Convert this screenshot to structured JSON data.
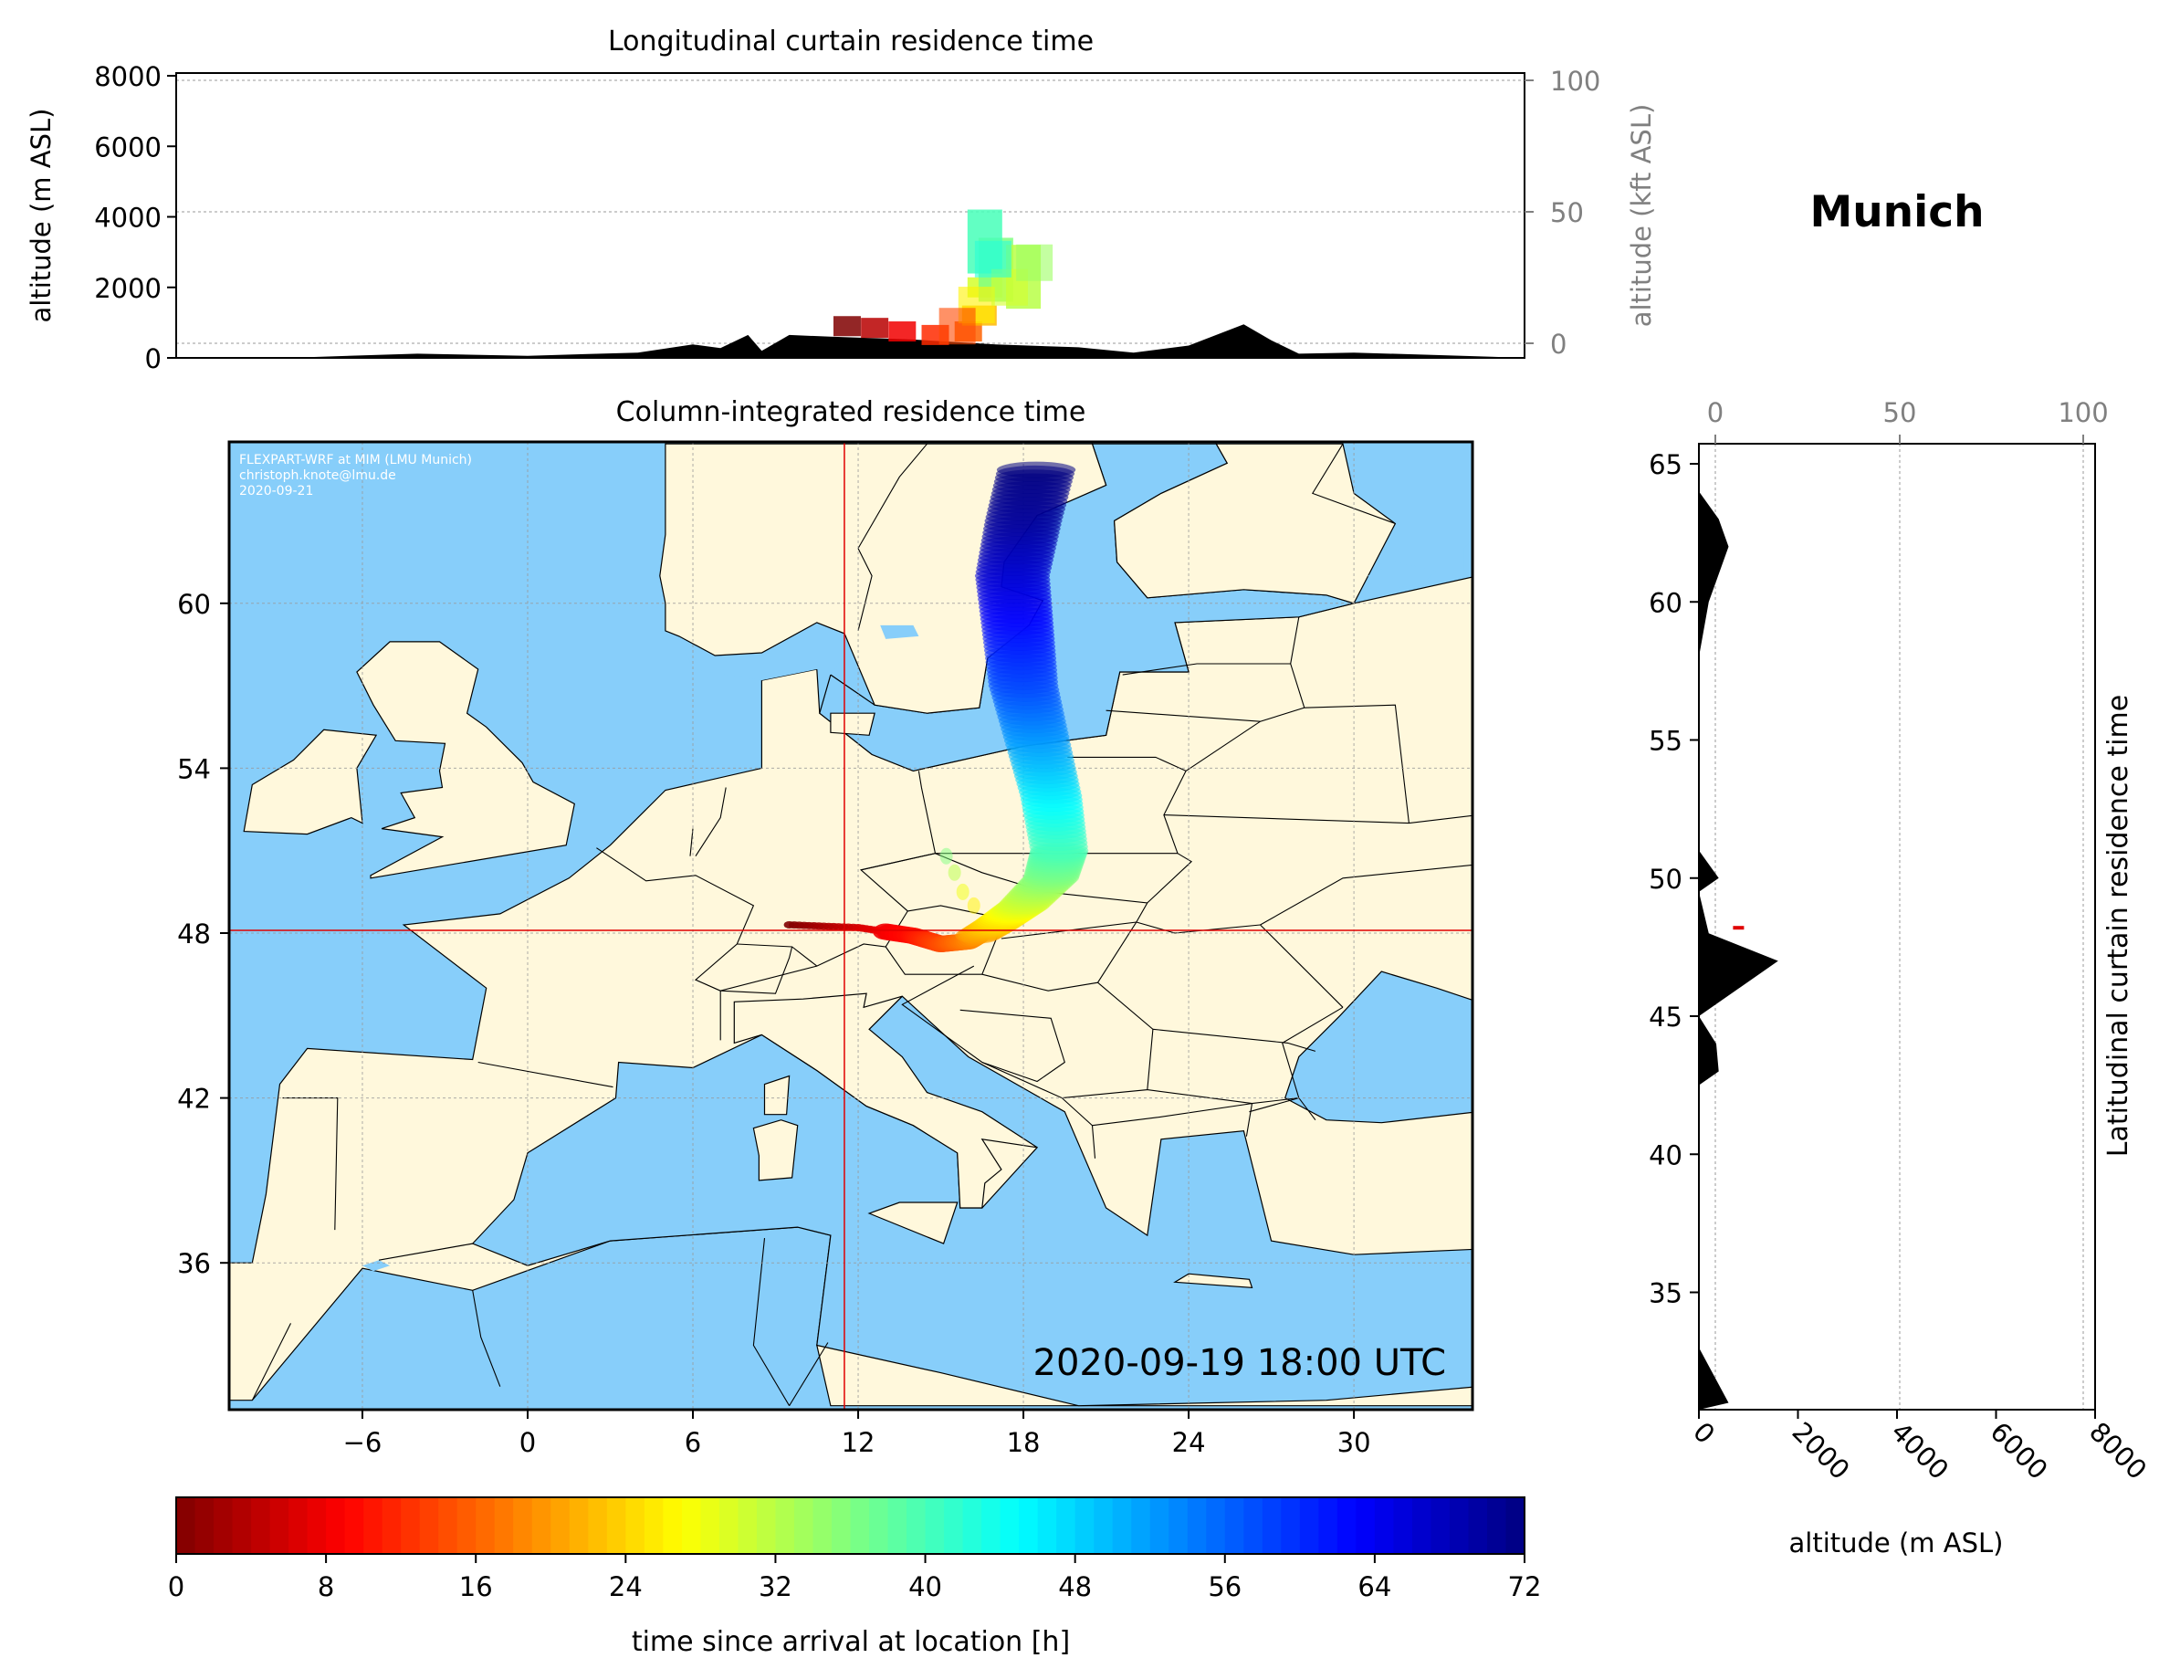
{
  "location": "Munich",
  "longitudinal": {
    "title": "Longitudinal curtain residence time",
    "ylabel_left": "altitude (m ASL)",
    "ylabel_right": "altitude (kft ASL)",
    "yticks_left": [
      "0",
      "2000",
      "4000",
      "6000",
      "8000"
    ],
    "yticks_right": [
      "0",
      "50",
      "100"
    ]
  },
  "map": {
    "title": "Column-integrated residence time",
    "credit_line1": "FLEXPART-WRF at MIM (LMU Munich)",
    "credit_line2": "christoph.knote@lmu.de",
    "credit_line3": "2020-09-21",
    "timestamp": "2020-09-19 18:00 UTC",
    "xticks": [
      "−6",
      "0",
      "6",
      "12",
      "18",
      "24",
      "30"
    ],
    "yticks": [
      "60",
      "54",
      "48",
      "42",
      "36"
    ],
    "station_lon": 11.5,
    "station_lat": 48.1
  },
  "latitudinal": {
    "title": "Latitudinal curtain residence time",
    "xlabel": "altitude (m ASL)",
    "xticks_bottom": [
      "0",
      "2000",
      "4000",
      "6000",
      "8000"
    ],
    "xticks_top": [
      "0",
      "50",
      "100"
    ],
    "yticks": [
      "65",
      "60",
      "55",
      "50",
      "45",
      "40",
      "35"
    ]
  },
  "colorbar": {
    "label": "time since arrival at location [h]",
    "ticks": [
      "0",
      "8",
      "16",
      "24",
      "32",
      "40",
      "48",
      "56",
      "64",
      "72"
    ]
  },
  "colors": {
    "ocean": "#87CEFA",
    "land": "#FFF8DC",
    "crosshair": "#E00000",
    "terrain": "#000000"
  },
  "chart_data": [
    {
      "type": "area",
      "name": "longitudinal-terrain",
      "x_units": "degrees_east",
      "y_units": "m ASL",
      "ylim": [
        0,
        8000
      ],
      "points": [
        [
          -15,
          0
        ],
        [
          -8,
          20
        ],
        [
          -4,
          120
        ],
        [
          0,
          60
        ],
        [
          4,
          150
        ],
        [
          6,
          380
        ],
        [
          7,
          280
        ],
        [
          8,
          650
        ],
        [
          8.5,
          200
        ],
        [
          9.5,
          650
        ],
        [
          11,
          600
        ],
        [
          14,
          520
        ],
        [
          17,
          380
        ],
        [
          20,
          300
        ],
        [
          22,
          150
        ],
        [
          24,
          350
        ],
        [
          26,
          950
        ],
        [
          27,
          500
        ],
        [
          28,
          120
        ],
        [
          30,
          150
        ],
        [
          33,
          80
        ],
        [
          35,
          30
        ]
      ]
    },
    {
      "type": "area",
      "name": "latitudinal-terrain",
      "y_units": "degrees_north",
      "x_units": "m ASL",
      "xlim": [
        0,
        8000
      ],
      "points": [
        [
          31,
          600
        ],
        [
          33,
          0
        ],
        [
          42.5,
          0
        ],
        [
          43,
          400
        ],
        [
          44,
          350
        ],
        [
          45,
          0
        ],
        [
          46,
          800
        ],
        [
          47,
          1600
        ],
        [
          47.5,
          900
        ],
        [
          48,
          200
        ],
        [
          49.5,
          0
        ],
        [
          50,
          400
        ],
        [
          51,
          0
        ],
        [
          58,
          0
        ],
        [
          60,
          200
        ],
        [
          62,
          600
        ],
        [
          63,
          400
        ],
        [
          64,
          0
        ]
      ]
    },
    {
      "type": "heatmap",
      "name": "column-integrated-plume",
      "value_units": "hours since arrival",
      "clim": [
        0,
        72
      ],
      "path": [
        [
          9.5,
          48.3,
          0
        ],
        [
          12,
          48.2,
          6
        ],
        [
          14,
          47.9,
          10
        ],
        [
          15,
          47.6,
          14
        ],
        [
          16,
          47.7,
          18
        ],
        [
          17,
          48.3,
          24
        ],
        [
          18,
          49,
          30
        ],
        [
          19,
          50,
          36
        ],
        [
          19.3,
          51,
          40
        ],
        [
          19,
          53,
          46
        ],
        [
          18.5,
          55,
          52
        ],
        [
          18,
          57,
          58
        ],
        [
          17.8,
          59,
          62
        ],
        [
          17.6,
          61,
          66
        ],
        [
          18,
          63,
          70
        ],
        [
          18.5,
          65,
          72
        ]
      ]
    },
    {
      "type": "heatmap",
      "name": "longitudinal-plume",
      "value_units": "hours since arrival",
      "cells": [
        [
          11.6,
          900,
          0
        ],
        [
          12.6,
          850,
          4
        ],
        [
          13.6,
          750,
          8
        ],
        [
          14.8,
          650,
          12
        ],
        [
          16,
          750,
          16
        ],
        [
          16.4,
          1200,
          22
        ],
        [
          16.6,
          2000,
          30
        ],
        [
          17,
          2500,
          36
        ],
        [
          18,
          2300,
          32
        ],
        [
          16.6,
          3300,
          40
        ]
      ]
    },
    {
      "type": "heatmap",
      "name": "colorbar",
      "scale": "jet_r",
      "range": [
        0,
        72
      ]
    }
  ]
}
